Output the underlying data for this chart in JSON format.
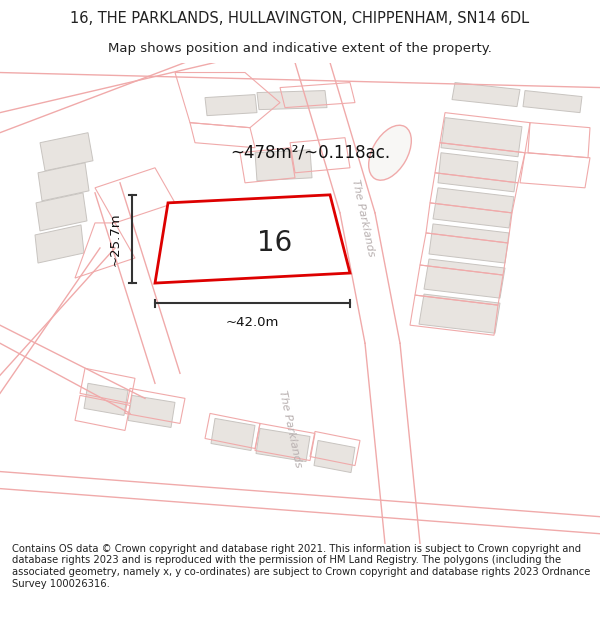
{
  "title": "16, THE PARKLANDS, HULLAVINGTON, CHIPPENHAM, SN14 6DL",
  "subtitle": "Map shows position and indicative extent of the property.",
  "area_text": "~478m²/~0.118ac.",
  "width_text": "~42.0m",
  "height_text": "~25.7m",
  "plot_number": "16",
  "copyright_text": "Contains OS data © Crown copyright and database right 2021. This information is subject to Crown copyright and database rights 2023 and is reproduced with the permission of HM Land Registry. The polygons (including the associated geometry, namely x, y co-ordinates) are subject to Crown copyright and database rights 2023 Ordnance Survey 100026316.",
  "bg_color": "#ffffff",
  "map_bg": "#f8f7f5",
  "road_outline_color": "#f0aaaa",
  "road_fill_color": "#f8f0f0",
  "building_color": "#e8e4e0",
  "building_edge": "#c8c4c0",
  "plot_color": "#dd0000",
  "text_color": "#222222",
  "annotation_color": "#111111",
  "street_text_color": "#c0b8b8",
  "dim_line_color": "#333333",
  "title_fontsize": 10.5,
  "subtitle_fontsize": 9.5,
  "copyright_fontsize": 7.2
}
